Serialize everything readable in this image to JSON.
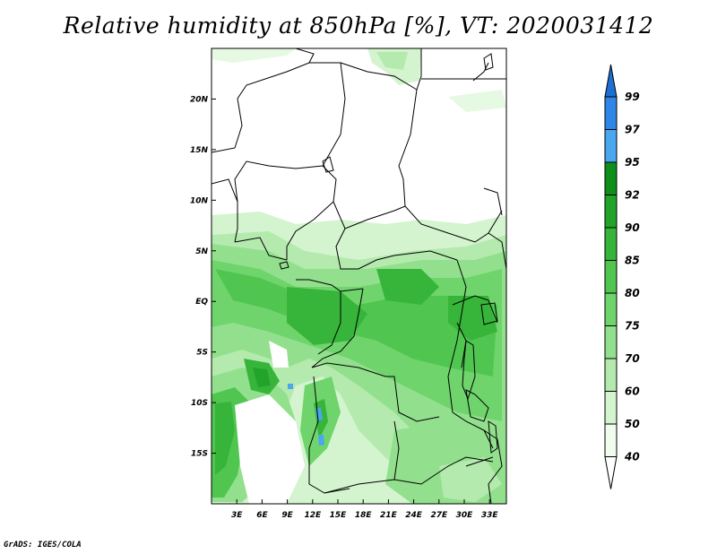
{
  "title": "Relative humidity at 850hPa [%], VT: 2020031412",
  "credit": "GrADS: IGES/COLA",
  "map": {
    "lon_labels": [
      "3E",
      "6E",
      "9E",
      "12E",
      "15E",
      "18E",
      "21E",
      "24E",
      "27E",
      "30E",
      "33E"
    ],
    "lat_labels": [
      "20N",
      "15N",
      "10N",
      "5N",
      "EQ",
      "5S",
      "10S",
      "15S"
    ],
    "lon_values": [
      3,
      6,
      9,
      12,
      15,
      18,
      21,
      24,
      27,
      30,
      33
    ],
    "lat_values": [
      20,
      15,
      10,
      5,
      0,
      -5,
      -10,
      -15
    ],
    "lon_range": [
      0,
      35
    ],
    "lat_range": [
      -20,
      25
    ]
  },
  "colorbar": {
    "levels": [
      "99",
      "97",
      "95",
      "92",
      "90",
      "85",
      "80",
      "75",
      "70",
      "60",
      "50",
      "40"
    ],
    "colors": [
      "#1e6fd1",
      "#2f86e6",
      "#4aa6ef",
      "#0f8f1a",
      "#22a42b",
      "#37b53a",
      "#50c650",
      "#6fd46c",
      "#92e08d",
      "#b4eaae",
      "#d3f4ce",
      "#f0fcec"
    ]
  }
}
